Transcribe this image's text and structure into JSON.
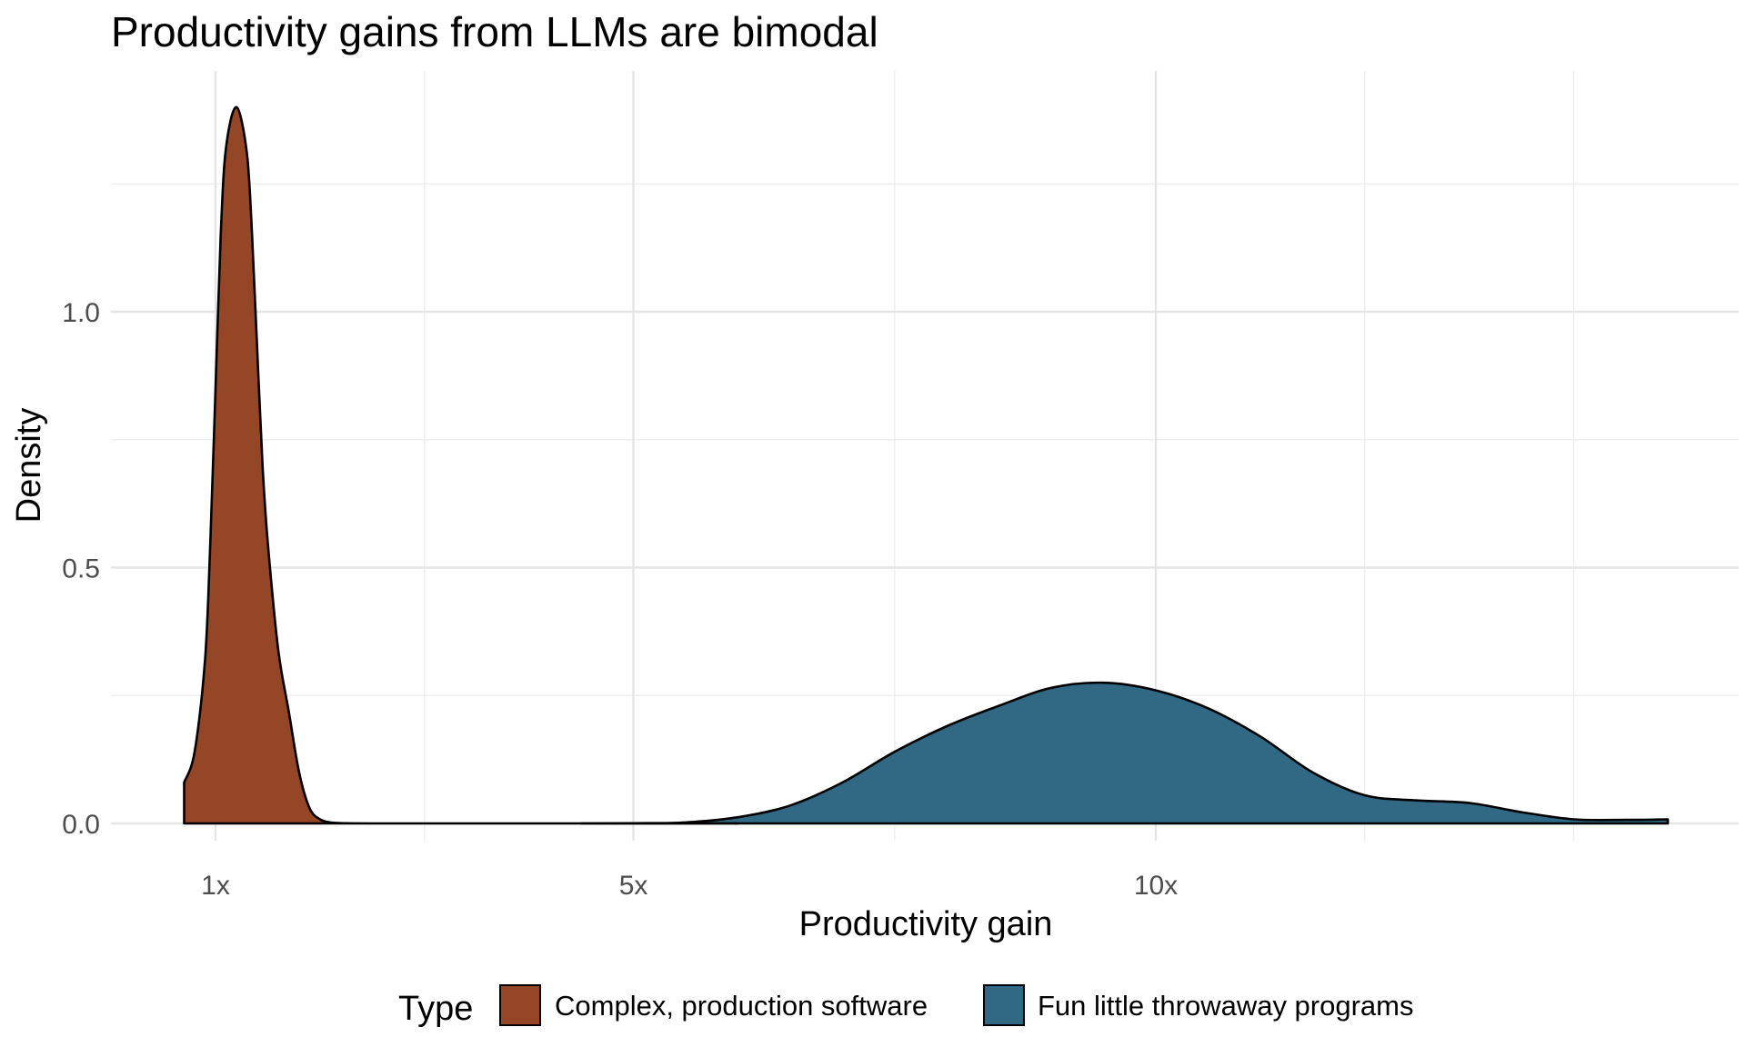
{
  "chart_data": {
    "type": "area",
    "title": "Productivity gains from LLMs are bimodal",
    "xlabel": "Productivity gain",
    "ylabel": "Density",
    "xlim": [
      0.35,
      15.4
    ],
    "ylim": [
      -0.05,
      1.47
    ],
    "x_ticks": [
      {
        "value": 1,
        "label": "1x"
      },
      {
        "value": 5,
        "label": "5x"
      },
      {
        "value": 10,
        "label": "10x"
      }
    ],
    "x_minor_ticks": [
      3,
      7.5,
      12,
      14
    ],
    "y_ticks": [
      {
        "value": 0.0,
        "label": "0.0"
      },
      {
        "value": 0.5,
        "label": "0.5"
      },
      {
        "value": 1.0,
        "label": "1.0"
      }
    ],
    "y_minor_ticks": [
      0.25,
      0.75,
      1.25
    ],
    "grid": true,
    "legend": {
      "title": "Type",
      "position": "bottom",
      "entries": [
        {
          "name": "Complex, production software",
          "color": "#944626"
        },
        {
          "name": "Fun little throwaway programs",
          "color": "#316985"
        }
      ]
    },
    "series": [
      {
        "name": "Complex, production software",
        "color": "#944626",
        "x": [
          0.7,
          0.8,
          0.9,
          0.95,
          1.0,
          1.05,
          1.1,
          1.2,
          1.3,
          1.35,
          1.4,
          1.45,
          1.5,
          1.6,
          1.7,
          1.8,
          1.9,
          2.0,
          2.1,
          2.2,
          2.3,
          2.5,
          3.0,
          5.0,
          6.0
        ],
        "values": [
          0.08,
          0.14,
          0.32,
          0.55,
          0.85,
          1.15,
          1.32,
          1.4,
          1.31,
          1.15,
          0.92,
          0.7,
          0.55,
          0.34,
          0.22,
          0.1,
          0.03,
          0.008,
          0.002,
          0.0005,
          0.0002,
          0.0,
          0.0,
          0.0,
          0.0
        ]
      },
      {
        "name": "Fun little throwaway programs",
        "color": "#316985",
        "x": [
          4.5,
          5.0,
          5.5,
          6.0,
          6.5,
          7.0,
          7.5,
          8.0,
          8.5,
          9.0,
          9.5,
          10.0,
          10.5,
          11.0,
          11.5,
          12.0,
          12.5,
          13.0,
          13.5,
          14.0,
          14.5,
          14.9
        ],
        "values": [
          0.0,
          0.0003,
          0.002,
          0.012,
          0.035,
          0.08,
          0.14,
          0.19,
          0.23,
          0.265,
          0.275,
          0.26,
          0.225,
          0.17,
          0.1,
          0.055,
          0.045,
          0.04,
          0.022,
          0.008,
          0.007,
          0.008
        ]
      }
    ]
  }
}
